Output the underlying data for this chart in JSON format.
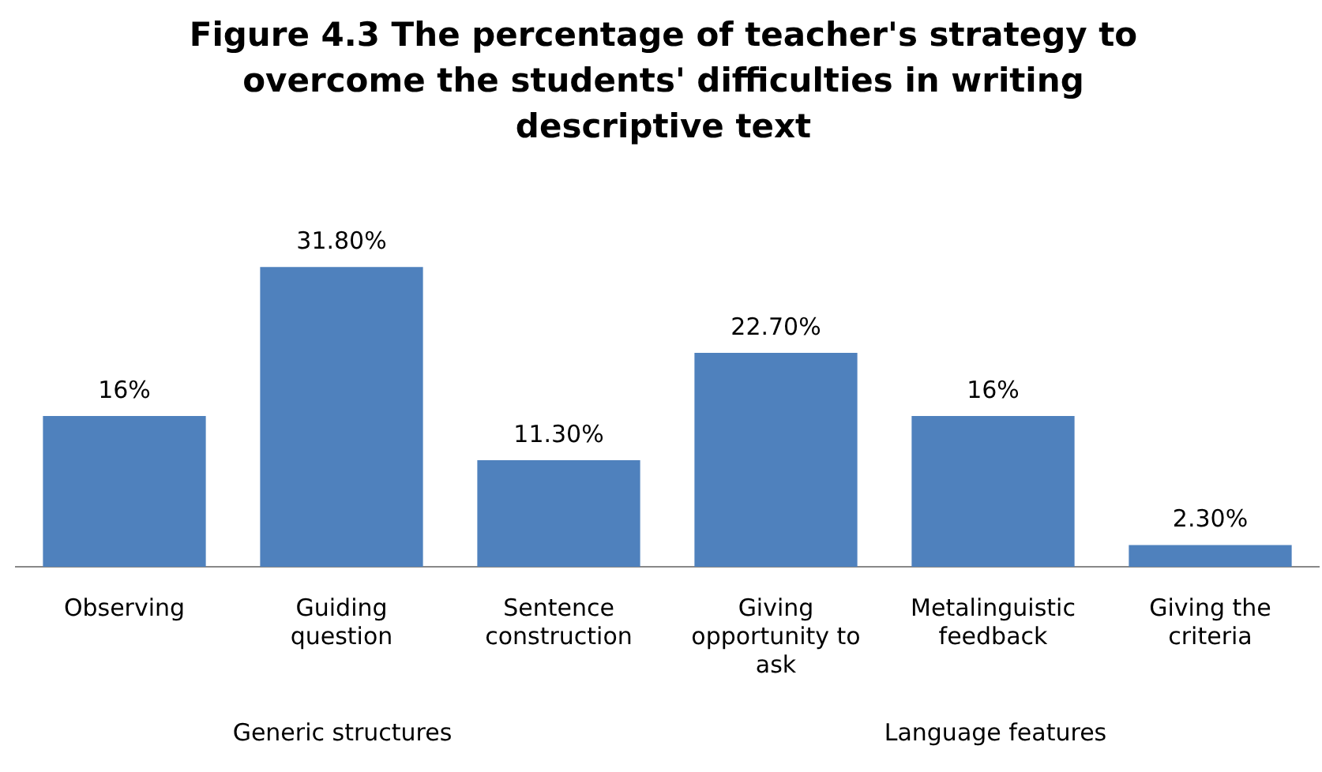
{
  "chart_data": {
    "type": "bar",
    "title": "Figure 4.3 The percentage of teacher's strategy to overcome the students' difficulties in writing descriptive text",
    "categories": [
      "Observing",
      "Guiding question",
      "Sentence construction",
      "Giving opportunity to ask",
      "Metalinguistic feedback",
      "Giving the criteria"
    ],
    "values": [
      16,
      31.8,
      11.3,
      22.7,
      16,
      2.3
    ],
    "value_labels": [
      "16%",
      "31.80%",
      "11.30%",
      "22.70%",
      "16%",
      "2.30%"
    ],
    "color": "#4f81bd",
    "annotations": [
      "Generic structures",
      "Language features"
    ],
    "grid": false,
    "legend": false
  }
}
